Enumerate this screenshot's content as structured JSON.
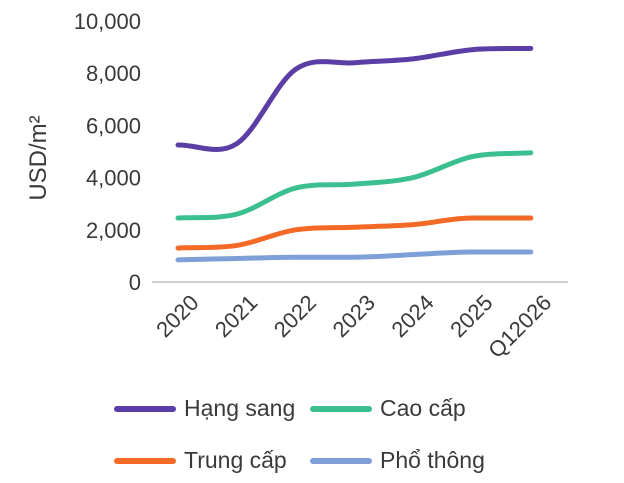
{
  "chart_data": {
    "type": "line",
    "title": "",
    "xlabel": "",
    "ylabel": "USD/m²",
    "ylim": [
      0,
      10000
    ],
    "yticks": [
      "0",
      "2,000",
      "4,000",
      "6,000",
      "8,000",
      "10,000"
    ],
    "ytick_values": [
      0,
      2000,
      4000,
      6000,
      8000,
      10000
    ],
    "categories": [
      "2020",
      "2021",
      "2022",
      "2023",
      "2024",
      "2025",
      "Q12026"
    ],
    "grid": false,
    "legend_position": "bottom",
    "series": [
      {
        "name": "Hạng sang",
        "color": "#5b3ea5",
        "values": [
          5250,
          5300,
          8150,
          8400,
          8550,
          8900,
          8950
        ]
      },
      {
        "name": "Cao cấp",
        "color": "#3cbf8f",
        "values": [
          2450,
          2600,
          3600,
          3750,
          4000,
          4800,
          4950
        ]
      },
      {
        "name": "Trung cấp",
        "color": "#f26a25",
        "values": [
          1300,
          1400,
          2000,
          2100,
          2200,
          2450,
          2450
        ]
      },
      {
        "name": "Phổ thông",
        "color": "#7f9fd8",
        "values": [
          850,
          900,
          950,
          950,
          1050,
          1150,
          1150
        ]
      }
    ]
  }
}
